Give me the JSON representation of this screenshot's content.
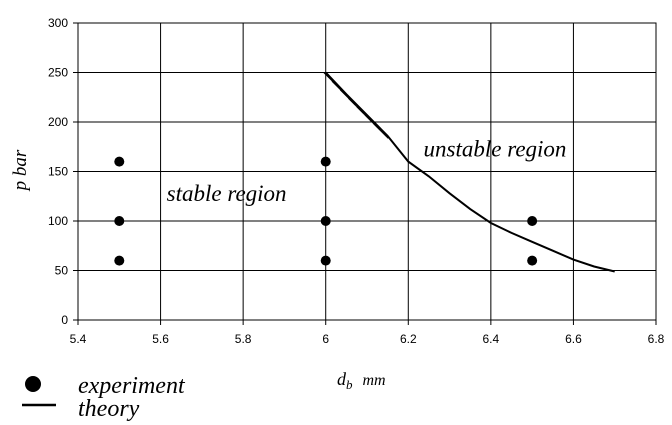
{
  "chart_data": {
    "type": "scatter",
    "xlabel": "d",
    "xlabel_sub": "b",
    "xlabel_unit": "mm",
    "ylabel": "p bar",
    "xlim": [
      5.4,
      6.8
    ],
    "ylim": [
      0,
      300
    ],
    "x_ticks": [
      "5.4",
      "5.6",
      "5.8",
      "6",
      "6.2",
      "6.4",
      "6.6",
      "6.8"
    ],
    "y_ticks": [
      "0",
      "50",
      "100",
      "150",
      "200",
      "250",
      "300"
    ],
    "grid": true,
    "legend_position": "bottom-left",
    "series": [
      {
        "name": "experiment",
        "kind": "points",
        "points": [
          [
            5.5,
            160
          ],
          [
            5.5,
            100
          ],
          [
            5.5,
            60
          ],
          [
            6.0,
            160
          ],
          [
            6.0,
            100
          ],
          [
            6.0,
            60
          ],
          [
            6.5,
            100
          ],
          [
            6.5,
            60
          ]
        ]
      },
      {
        "name": "theory",
        "kind": "line",
        "points": [
          [
            6.0,
            250
          ],
          [
            6.05,
            228
          ],
          [
            6.1,
            207
          ],
          [
            6.15,
            186
          ],
          [
            6.2,
            160
          ],
          [
            6.25,
            145
          ],
          [
            6.3,
            128
          ],
          [
            6.35,
            112
          ],
          [
            6.4,
            98
          ],
          [
            6.45,
            88
          ],
          [
            6.5,
            79
          ],
          [
            6.55,
            70
          ],
          [
            6.6,
            61
          ],
          [
            6.65,
            54
          ],
          [
            6.7,
            49
          ]
        ]
      }
    ],
    "annotations": [
      {
        "text": "stable region",
        "x": 5.76,
        "y": 120
      },
      {
        "text": "unstable region",
        "x": 6.41,
        "y": 165
      }
    ]
  }
}
